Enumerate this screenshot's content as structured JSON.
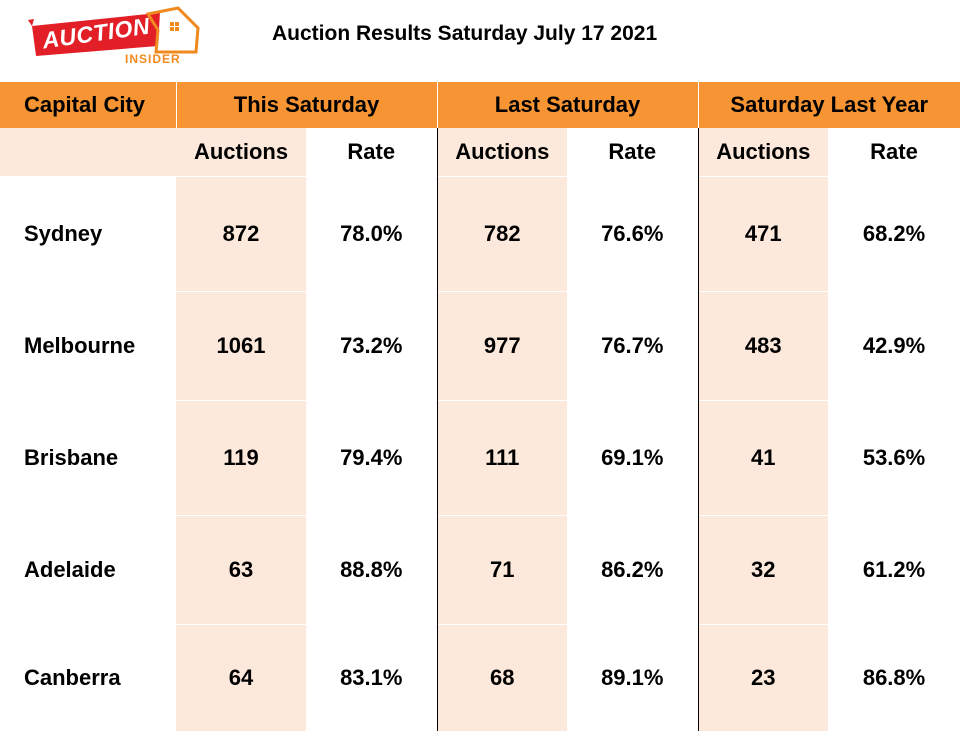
{
  "logo": {
    "word": "AUCTION",
    "sub": "INSIDER",
    "colors": {
      "red": "#E21F26",
      "orange": "#F08A1E"
    }
  },
  "title": "Auction Results Saturday July 17 2021",
  "table": {
    "group_headers": [
      "Capital City",
      "This Saturday",
      "Last Saturday",
      "Saturday Last Year"
    ],
    "sub_headers": [
      "",
      "Auctions",
      "Rate",
      "Auctions",
      "Rate",
      "Auctions",
      "Rate"
    ],
    "rows": [
      {
        "city": "Sydney",
        "values": [
          "872",
          "78.0%",
          "782",
          "76.6%",
          "471",
          "68.2%"
        ]
      },
      {
        "city": "Melbourne",
        "values": [
          "1061",
          "73.2%",
          "977",
          "76.7%",
          "483",
          "42.9%"
        ]
      },
      {
        "city": "Brisbane",
        "values": [
          "119",
          "79.4%",
          "111",
          "69.1%",
          "41",
          "53.6%"
        ]
      },
      {
        "city": "Adelaide",
        "values": [
          "63",
          "88.8%",
          "71",
          "86.2%",
          "32",
          "61.2%"
        ]
      },
      {
        "city": "Canberra",
        "values": [
          "64",
          "83.1%",
          "68",
          "89.1%",
          "23",
          "86.8%"
        ]
      }
    ],
    "colors": {
      "header": "#F79433",
      "tint": "#FDE9DB"
    }
  }
}
